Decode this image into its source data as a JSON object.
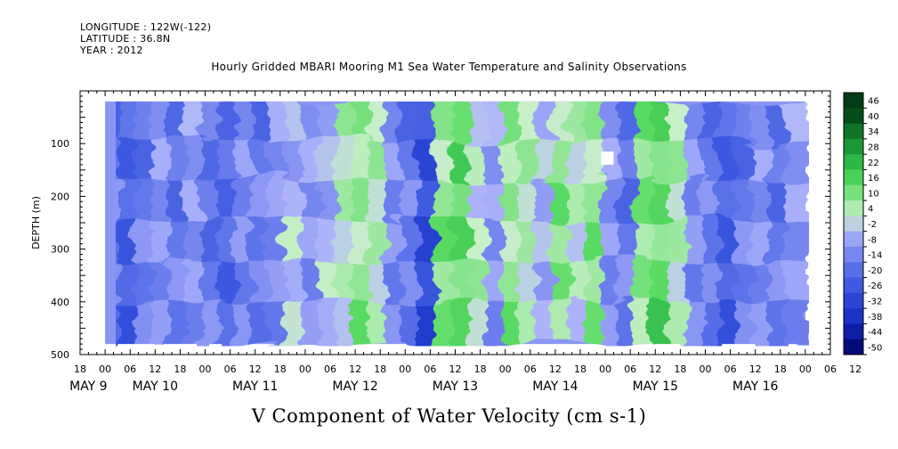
{
  "header": {
    "longitude": "LONGITUDE : 122W(-122)",
    "latitude": "LATITUDE : 36.8N",
    "year": "YEAR : 2012"
  },
  "chart_data": {
    "type": "heatmap",
    "title": "Hourly Gridded MBARI Mooring M1 Sea Water Temperature and Salinity Observations",
    "subtitle": "V Component of Water Velocity (cm s-1)",
    "ylabel": "DEPTH (m)",
    "ylim": [
      500,
      0
    ],
    "y_ticks": [
      100,
      200,
      300,
      400,
      500
    ],
    "x_range_hours": [
      -6,
      174
    ],
    "x_hour_labels": [
      "18",
      "00",
      "06",
      "12",
      "18",
      "00",
      "06",
      "12",
      "18",
      "00",
      "06",
      "12",
      "18",
      "00",
      "06",
      "12",
      "18",
      "00",
      "06",
      "12",
      "18",
      "00",
      "06",
      "12",
      "18",
      "00",
      "06",
      "12",
      "18",
      "00",
      "06",
      "12"
    ],
    "x_day_labels": [
      "MAY  9",
      "MAY 10",
      "MAY 11",
      "MAY 12",
      "MAY 13",
      "MAY 14",
      "MAY 15",
      "MAY 16"
    ],
    "colorbar": {
      "levels": [
        -50,
        -44,
        -38,
        -32,
        -26,
        -20,
        -14,
        -8,
        -2,
        4,
        10,
        16,
        22,
        28,
        34,
        40,
        46
      ],
      "label_levels": [
        "46",
        "40",
        "34",
        "28",
        "22",
        "16",
        "10",
        "4",
        "-2",
        "-8",
        "-14",
        "-20",
        "-26",
        "-32",
        "-38",
        "-44",
        "-50"
      ]
    },
    "data_extent": {
      "time_start_hour": 0,
      "time_end_hour": 168,
      "depth_top_m": 20,
      "depth_bottom_m": 480
    },
    "bands": [
      {
        "t": 2,
        "v": -14
      },
      {
        "t": 6,
        "v": -20
      },
      {
        "t": 10,
        "v": -14
      },
      {
        "t": 14,
        "v": -8
      },
      {
        "t": 18,
        "v": -14
      },
      {
        "t": 22,
        "v": -8
      },
      {
        "t": 26,
        "v": -14
      },
      {
        "t": 30,
        "v": -20
      },
      {
        "t": 34,
        "v": -8
      },
      {
        "t": 38,
        "v": -14
      },
      {
        "t": 42,
        "v": -8
      },
      {
        "t": 46,
        "v": -2
      },
      {
        "t": 50,
        "v": -8
      },
      {
        "t": 54,
        "v": -2
      },
      {
        "t": 58,
        "v": 4
      },
      {
        "t": 62,
        "v": 10
      },
      {
        "t": 66,
        "v": 4
      },
      {
        "t": 70,
        "v": -8
      },
      {
        "t": 74,
        "v": -14
      },
      {
        "t": 78,
        "v": -26
      },
      {
        "t": 82,
        "v": 10
      },
      {
        "t": 86,
        "v": 16
      },
      {
        "t": 90,
        "v": 4
      },
      {
        "t": 94,
        "v": -8
      },
      {
        "t": 98,
        "v": 10
      },
      {
        "t": 102,
        "v": 4
      },
      {
        "t": 106,
        "v": -2
      },
      {
        "t": 110,
        "v": 10
      },
      {
        "t": 114,
        "v": 4
      },
      {
        "t": 118,
        "v": 10
      },
      {
        "t": 122,
        "v": -8
      },
      {
        "t": 126,
        "v": -14
      },
      {
        "t": 130,
        "v": 10
      },
      {
        "t": 134,
        "v": 16
      },
      {
        "t": 138,
        "v": 4
      },
      {
        "t": 142,
        "v": -8
      },
      {
        "t": 146,
        "v": -14
      },
      {
        "t": 150,
        "v": -20
      },
      {
        "t": 154,
        "v": -14
      },
      {
        "t": 158,
        "v": -8
      },
      {
        "t": 162,
        "v": -14
      },
      {
        "t": 166,
        "v": -8
      }
    ]
  }
}
